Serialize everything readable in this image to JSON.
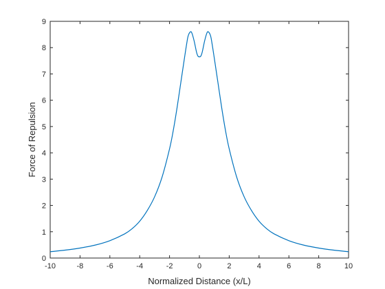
{
  "chart_data": {
    "type": "line",
    "xlabel": "Normalized Distance (x/L)",
    "ylabel": "Force of Repulsion",
    "xlim": [
      -10,
      10
    ],
    "ylim": [
      0,
      9
    ],
    "xticks": [
      -10,
      -8,
      -6,
      -4,
      -2,
      0,
      2,
      4,
      6,
      8,
      10
    ],
    "yticks": [
      0,
      1,
      2,
      3,
      4,
      5,
      6,
      7,
      8,
      9
    ],
    "grid": false,
    "line_color": "#0072BD",
    "series": [
      {
        "x": [
          -10,
          -9,
          -8,
          -7,
          -6,
          -5,
          -4.5,
          -4,
          -3.5,
          -3,
          -2.5,
          -2,
          -1.75,
          -1.5,
          -1.25,
          -1,
          -0.85,
          -0.75,
          -0.6,
          -0.5,
          -0.35,
          -0.2,
          -0.1,
          0,
          0.1,
          0.2,
          0.35,
          0.5,
          0.6,
          0.75,
          0.85,
          1,
          1.25,
          1.5,
          1.75,
          2,
          2.5,
          3,
          3.5,
          4,
          4.5,
          5,
          6,
          7,
          8,
          9,
          10
        ],
        "y": [
          0.24,
          0.3,
          0.38,
          0.49,
          0.66,
          0.92,
          1.12,
          1.4,
          1.8,
          2.33,
          3.08,
          4.15,
          4.85,
          5.7,
          6.65,
          7.6,
          8.15,
          8.45,
          8.6,
          8.55,
          8.25,
          7.85,
          7.68,
          7.65,
          7.68,
          7.85,
          8.25,
          8.55,
          8.6,
          8.45,
          8.15,
          7.6,
          6.65,
          5.7,
          4.85,
          4.15,
          3.08,
          2.33,
          1.8,
          1.4,
          1.12,
          0.92,
          0.66,
          0.49,
          0.38,
          0.3,
          0.24
        ]
      }
    ]
  }
}
